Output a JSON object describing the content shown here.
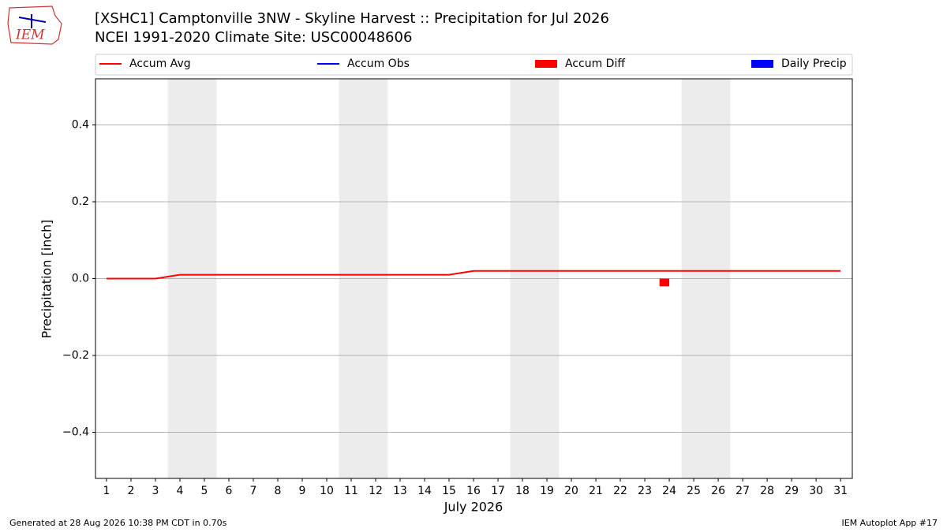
{
  "chart_data": {
    "type": "line",
    "title": "[XSHC1] Camptonville 3NW - Skyline Harvest :: Precipitation for Jul 2026",
    "subtitle": "NCEI 1991-2020 Climate Site: USC00048606",
    "logo_text": "IEM",
    "x_label": "July 2026",
    "y_label": "Precipitation [inch]",
    "x": [
      1,
      2,
      3,
      4,
      5,
      6,
      7,
      8,
      9,
      10,
      11,
      12,
      13,
      14,
      15,
      16,
      17,
      18,
      19,
      20,
      21,
      22,
      23,
      24,
      25,
      26,
      27,
      28,
      29,
      30,
      31
    ],
    "xlim": [
      0.55,
      31.48
    ],
    "xticks": [
      1,
      2,
      3,
      4,
      5,
      6,
      7,
      8,
      9,
      10,
      11,
      12,
      13,
      14,
      15,
      16,
      17,
      18,
      19,
      20,
      21,
      22,
      23,
      24,
      25,
      26,
      27,
      28,
      29,
      30,
      31
    ],
    "ylim": [
      -0.52,
      0.52
    ],
    "yticks": [
      {
        "value": -0.4,
        "label": "−0.4"
      },
      {
        "value": -0.2,
        "label": "−0.2"
      },
      {
        "value": 0,
        "label": "0.0"
      },
      0.2,
      0.4
    ],
    "grid": true,
    "weekend_spans": [
      [
        3.5,
        5.5
      ],
      [
        10.5,
        12.5
      ],
      [
        17.5,
        19.5
      ],
      [
        24.5,
        26.5
      ]
    ],
    "series": [
      {
        "name": "Accum Avg",
        "color": "#ff0000",
        "kind": "line",
        "values": [
          0,
          0,
          0,
          0.01,
          0.01,
          0.01,
          0.01,
          0.01,
          0.01,
          0.01,
          0.01,
          0.01,
          0.01,
          0.01,
          0.01,
          0.02,
          0.02,
          0.02,
          0.02,
          0.02,
          0.02,
          0.02,
          0.02,
          0.02,
          0.02,
          0.02,
          0.02,
          0.02,
          0.02,
          0.02,
          0.02
        ]
      },
      {
        "name": "Accum Obs",
        "color": "#0000ff",
        "kind": "line",
        "values": [
          null,
          null,
          null,
          null,
          null,
          null,
          null,
          null,
          null,
          null,
          null,
          null,
          null,
          null,
          null,
          null,
          null,
          null,
          null,
          null,
          null,
          null,
          null,
          null,
          null,
          null,
          null,
          null,
          null,
          null,
          null
        ]
      },
      {
        "name": "Accum Diff",
        "color": "#ff0000",
        "kind": "bar",
        "values": [
          null,
          null,
          null,
          null,
          null,
          null,
          null,
          null,
          null,
          null,
          null,
          null,
          null,
          null,
          null,
          null,
          null,
          null,
          null,
          null,
          null,
          null,
          null,
          -0.02,
          null,
          null,
          null,
          null,
          null,
          null,
          null
        ]
      },
      {
        "name": "Daily Precip",
        "color": "#0000ff",
        "kind": "bar",
        "values": [
          null,
          null,
          null,
          null,
          null,
          null,
          null,
          null,
          null,
          null,
          null,
          null,
          null,
          null,
          null,
          null,
          null,
          null,
          null,
          null,
          null,
          null,
          null,
          null,
          null,
          null,
          null,
          null,
          null,
          null,
          null
        ]
      }
    ],
    "footer_left": "Generated at 28 Aug 2026 10:38 PM CDT in 0.70s",
    "footer_right": "IEM Autoplot App #17"
  }
}
